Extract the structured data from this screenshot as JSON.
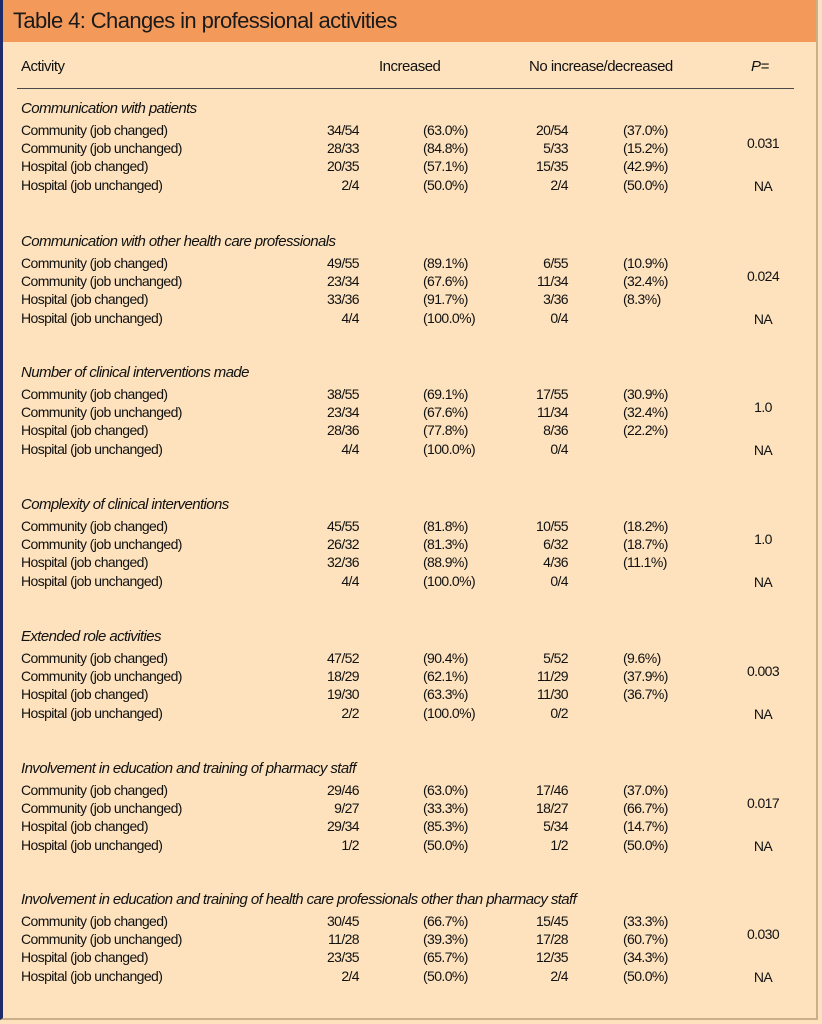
{
  "title": "Table 4: Changes in professional activities",
  "headers": {
    "activity": "Activity",
    "increased": "Increased",
    "no_increase": "No increase/decreased",
    "p": "P="
  },
  "sections": [
    {
      "title": "Communication with patients",
      "rows": [
        {
          "label": "Community (job changed)",
          "inc": "34/54",
          "inc_pct": "(63.0%)",
          "no": "20/54",
          "no_pct": "(37.0%)"
        },
        {
          "label": "Community (job unchanged)",
          "inc": "28/33",
          "inc_pct": "(84.8%)",
          "no": "5/33",
          "no_pct": "(15.2%)"
        },
        {
          "label": "Hospital (job changed)",
          "inc": "20/35",
          "inc_pct": "(57.1%)",
          "no": "15/35",
          "no_pct": "(42.9%)"
        },
        {
          "label": "Hospital (job unchanged)",
          "inc": "2/4",
          "inc_pct": "(50.0%)",
          "no": "2/4",
          "no_pct": "(50.0%)"
        }
      ],
      "p_community": "0.031",
      "p_hospital": "NA"
    },
    {
      "title": "Communication with other health care professionals",
      "rows": [
        {
          "label": "Community (job changed)",
          "inc": "49/55",
          "inc_pct": "(89.1%)",
          "no": "6/55",
          "no_pct": "(10.9%)"
        },
        {
          "label": "Community (job unchanged)",
          "inc": "23/34",
          "inc_pct": "(67.6%)",
          "no": "11/34",
          "no_pct": "(32.4%)"
        },
        {
          "label": "Hospital (job changed)",
          "inc": "33/36",
          "inc_pct": "(91.7%)",
          "no": "3/36",
          "no_pct": "(8.3%)"
        },
        {
          "label": "Hospital (job unchanged)",
          "inc": "4/4",
          "inc_pct": "(100.0%)",
          "no": "0/4",
          "no_pct": ""
        }
      ],
      "p_community": "0.024",
      "p_hospital": "NA"
    },
    {
      "title": "Number of clinical interventions made",
      "rows": [
        {
          "label": "Community (job changed)",
          "inc": "38/55",
          "inc_pct": "(69.1%)",
          "no": "17/55",
          "no_pct": "(30.9%)"
        },
        {
          "label": "Community (job unchanged)",
          "inc": "23/34",
          "inc_pct": "(67.6%)",
          "no": "11/34",
          "no_pct": "(32.4%)"
        },
        {
          "label": "Hospital (job changed)",
          "inc": "28/36",
          "inc_pct": "(77.8%)",
          "no": "8/36",
          "no_pct": "(22.2%)"
        },
        {
          "label": "Hospital (job unchanged)",
          "inc": "4/4",
          "inc_pct": "(100.0%)",
          "no": "0/4",
          "no_pct": ""
        }
      ],
      "p_community": "1.0",
      "p_hospital": "NA"
    },
    {
      "title": "Complexity of clinical interventions",
      "rows": [
        {
          "label": "Community (job changed)",
          "inc": "45/55",
          "inc_pct": "(81.8%)",
          "no": "10/55",
          "no_pct": "(18.2%)"
        },
        {
          "label": "Community (job unchanged)",
          "inc": "26/32",
          "inc_pct": "(81.3%)",
          "no": "6/32",
          "no_pct": "(18.7%)"
        },
        {
          "label": "Hospital (job changed)",
          "inc": "32/36",
          "inc_pct": "(88.9%)",
          "no": "4/36",
          "no_pct": "(11.1%)"
        },
        {
          "label": "Hospital (job unchanged)",
          "inc": "4/4",
          "inc_pct": "(100.0%)",
          "no": "0/4",
          "no_pct": ""
        }
      ],
      "p_community": "1.0",
      "p_hospital": "NA"
    },
    {
      "title": "Extended role activities",
      "rows": [
        {
          "label": "Community (job changed)",
          "inc": "47/52",
          "inc_pct": "(90.4%)",
          "no": "5/52",
          "no_pct": "(9.6%)"
        },
        {
          "label": "Community (job unchanged)",
          "inc": "18/29",
          "inc_pct": "(62.1%)",
          "no": "11/29",
          "no_pct": "(37.9%)"
        },
        {
          "label": "Hospital (job changed)",
          "inc": "19/30",
          "inc_pct": "(63.3%)",
          "no": "11/30",
          "no_pct": "(36.7%)"
        },
        {
          "label": "Hospital (job unchanged)",
          "inc": "2/2",
          "inc_pct": "(100.0%)",
          "no": "0/2",
          "no_pct": ""
        }
      ],
      "p_community": "0.003",
      "p_hospital": "NA"
    },
    {
      "title": "Involvement in education and training of pharmacy staff",
      "rows": [
        {
          "label": "Community (job changed)",
          "inc": "29/46",
          "inc_pct": "(63.0%)",
          "no": "17/46",
          "no_pct": "(37.0%)"
        },
        {
          "label": "Community (job unchanged)",
          "inc": "9/27",
          "inc_pct": "(33.3%)",
          "no": "18/27",
          "no_pct": "(66.7%)"
        },
        {
          "label": "Hospital (job changed)",
          "inc": "29/34",
          "inc_pct": "(85.3%)",
          "no": "5/34",
          "no_pct": "(14.7%)"
        },
        {
          "label": "Hospital (job unchanged)",
          "inc": "1/2",
          "inc_pct": "(50.0%)",
          "no": "1/2",
          "no_pct": "(50.0%)"
        }
      ],
      "p_community": "0.017",
      "p_hospital": "NA"
    },
    {
      "title": "Involvement in education and training of health care professionals other than pharmacy staff",
      "rows": [
        {
          "label": "Community (job changed)",
          "inc": "30/45",
          "inc_pct": "(66.7%)",
          "no": "15/45",
          "no_pct": "(33.3%)"
        },
        {
          "label": "Community (job unchanged)",
          "inc": "11/28",
          "inc_pct": "(39.3%)",
          "no": "17/28",
          "no_pct": "(60.7%)"
        },
        {
          "label": "Hospital (job changed)",
          "inc": "23/35",
          "inc_pct": "(65.7%)",
          "no": "12/35",
          "no_pct": "(34.3%)"
        },
        {
          "label": "Hospital (job unchanged)",
          "inc": "2/4",
          "inc_pct": "(50.0%)",
          "no": "2/4",
          "no_pct": "(50.0%)"
        }
      ],
      "p_community": "0.030",
      "p_hospital": "NA"
    }
  ]
}
